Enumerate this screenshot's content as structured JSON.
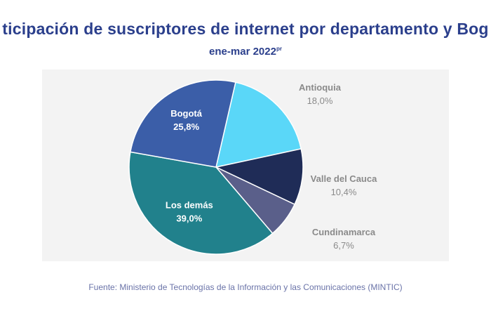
{
  "title": "ticipación de suscriptores de internet por departamento y Bog",
  "subtitle": "ene-mar 2022",
  "subtitle_sup": "pr",
  "source": "Fuente: Ministerio de Tecnologías de la Información y las Comunicaciones (MINTIC)",
  "chart_data": {
    "type": "pie",
    "slices": [
      {
        "label": "Antioquia",
        "value": 18.0,
        "value_label": "18,0%",
        "color": "#5ad7f8",
        "label_position": "outside",
        "label_color": "#8a8a8a"
      },
      {
        "label": "Valle del Cauca",
        "value": 10.4,
        "value_label": "10,4%",
        "color": "#1f2c57",
        "label_position": "outside",
        "label_color": "#8a8a8a"
      },
      {
        "label": "Cundinamarca",
        "value": 6.7,
        "value_label": "6,7%",
        "color": "#5a5f8a",
        "label_position": "outside",
        "label_color": "#8a8a8a"
      },
      {
        "label": "Los demás",
        "value": 39.0,
        "value_label": "39,0%",
        "color": "#21818c",
        "label_position": "inside",
        "label_color": "#ffffff"
      },
      {
        "label": "Bogotá",
        "value": 25.8,
        "value_label": "25,8%",
        "color": "#3b5ea8",
        "label_position": "inside",
        "label_color": "#ffffff"
      }
    ]
  }
}
